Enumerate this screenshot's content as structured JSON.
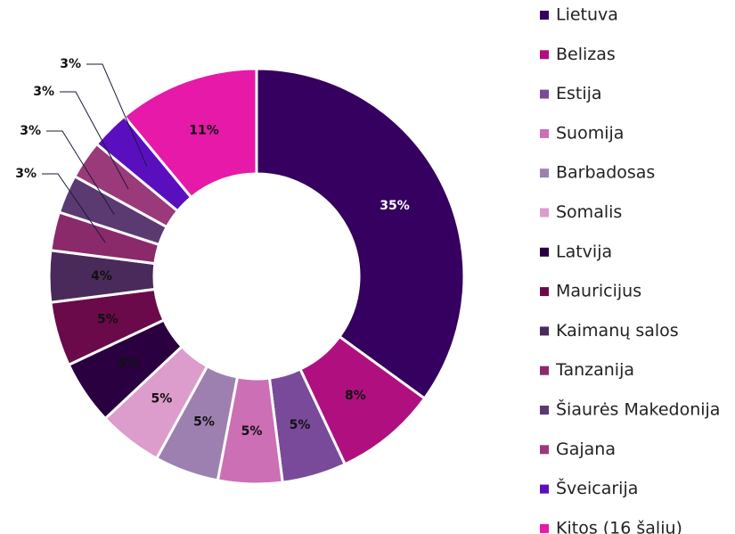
{
  "chart_data": {
    "type": "donut",
    "categories": [
      "Lietuva",
      "Belizas",
      "Estija",
      "Suomija",
      "Barbadosas",
      "Somalis",
      "Latvija",
      "Mauricijus",
      "Kaimanų salos",
      "Tanzanija",
      "Šiaurės Makedonija",
      "Gajana",
      "Šveicarija",
      "Kitos (16 šalių)"
    ],
    "values": [
      35,
      8,
      5,
      5,
      5,
      5,
      5,
      5,
      4,
      3,
      3,
      3,
      3,
      11
    ],
    "value_labels": [
      "35%",
      "8%",
      "5%",
      "5%",
      "5%",
      "5%",
      "5%",
      "5%",
      "4%",
      "3%",
      "3%",
      "3%",
      "3%",
      "11%"
    ],
    "colors": [
      "#35005f",
      "#b0107f",
      "#7a4a9a",
      "#cc6fb5",
      "#9d80b0",
      "#dc9ccc",
      "#2a0040",
      "#6a0a4a",
      "#4a2a5a",
      "#8a2a6a",
      "#5a3a70",
      "#9a3a7a",
      "#5a0fbf",
      "#e619a8"
    ],
    "legend": "right"
  }
}
